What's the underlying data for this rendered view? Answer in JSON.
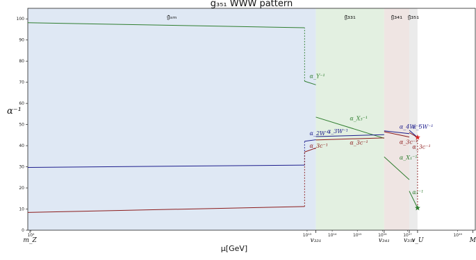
{
  "chart_data": {
    "type": "line",
    "title": "g₃₅₁ WWW pattern",
    "ylabel": "α⁻¹",
    "xlabel": "μ[GeV]",
    "ylim": [
      0,
      105
    ],
    "xlim_log10": [
      1.875,
      19.7
    ],
    "x_scale": "log",
    "y_ticks": [
      "0",
      "10",
      "20",
      "30",
      "40",
      "50",
      "60",
      "70",
      "80",
      "90",
      "100"
    ],
    "x_minor_ticks": [
      {
        "label": "10²",
        "log10": 2
      },
      {
        "label": "10¹³",
        "log10": 13.0
      },
      {
        "label": "10¹⁴",
        "log10": 14
      },
      {
        "label": "10¹⁵",
        "log10": 15
      },
      {
        "label": "10¹⁶",
        "log10": 16
      },
      {
        "label": "10¹⁷",
        "log10": 17
      },
      {
        "label": "10¹⁹",
        "log10": 19
      }
    ],
    "x_special_ticks": [
      {
        "label": "m_Z",
        "log10": 1.96
      },
      {
        "label": "v₃₃₁",
        "log10": 13.35
      },
      {
        "label": "v₃₄₁",
        "log10": 16.07
      },
      {
        "label": "v₃₅₁",
        "log10": 17.07
      },
      {
        "label": "v_U",
        "log10": 17.4
      },
      {
        "label": "M",
        "log10": 19.6
      }
    ],
    "regions": [
      {
        "label": "𝔤ₛₘ",
        "x_range_log10": [
          1.875,
          13.35
        ],
        "color": "#dfe8f4"
      },
      {
        "label": "𝔤₃₃₁",
        "x_range_log10": [
          13.35,
          16.07
        ],
        "color": "#e3f0e1"
      },
      {
        "label": "𝔤₃₄₁",
        "x_range_log10": [
          16.07,
          17.07
        ],
        "color": "#efe5e3"
      },
      {
        "label": "𝔤₃₅₁",
        "x_range_log10": [
          17.07,
          17.4
        ],
        "color": "#ebebeb"
      }
    ],
    "series": [
      {
        "color": "#2e7d2e",
        "points": [
          [
            1.875,
            98.2
          ],
          [
            12.9,
            95.8
          ]
        ]
      },
      {
        "color": "#2e7d2e",
        "points": [
          [
            12.9,
            70.5
          ],
          [
            13.35,
            68.8
          ]
        ]
      },
      {
        "color": "#1c1c8c",
        "points": [
          [
            1.875,
            29.7
          ],
          [
            12.9,
            30.8
          ]
        ]
      },
      {
        "color": "#1c1c8c",
        "points": [
          [
            12.9,
            42.1
          ],
          [
            13.35,
            42.8
          ]
        ]
      },
      {
        "color": "#8b1a1a",
        "points": [
          [
            1.875,
            8.4
          ],
          [
            12.9,
            11.2
          ]
        ]
      },
      {
        "color": "#8b1a1a",
        "points": [
          [
            12.9,
            37.0
          ],
          [
            13.35,
            38.9
          ]
        ]
      },
      {
        "color": "#2e7d2e",
        "points": [
          [
            13.35,
            53.5
          ],
          [
            16.07,
            43.5
          ]
        ]
      },
      {
        "color": "#1c1c8c",
        "points": [
          [
            13.35,
            44.3
          ],
          [
            16.07,
            45.2
          ]
        ]
      },
      {
        "color": "#8b1a1a",
        "points": [
          [
            13.35,
            42.7
          ],
          [
            16.07,
            43.7
          ]
        ]
      },
      {
        "color": "#2e7d2e",
        "points": [
          [
            16.07,
            34.7
          ],
          [
            17.07,
            23.9
          ]
        ]
      },
      {
        "color": "#1c1c8c",
        "points": [
          [
            16.07,
            47.0
          ],
          [
            17.07,
            45.7
          ]
        ]
      },
      {
        "color": "#8b1a1a",
        "points": [
          [
            16.07,
            46.6
          ],
          [
            17.07,
            44.1
          ]
        ]
      },
      {
        "color": "#2e7d2e",
        "points": [
          [
            17.07,
            18.5
          ],
          [
            17.4,
            10.5
          ]
        ]
      },
      {
        "color": "#1c1c8c",
        "points": [
          [
            17.07,
            47.3
          ],
          [
            17.4,
            43.9
          ]
        ]
      },
      {
        "color": "#8b1a1a",
        "points": [
          [
            17.07,
            46.2
          ],
          [
            17.4,
            43.9
          ]
        ]
      }
    ],
    "threshold_jumps": [
      {
        "color": "#2e7d2e",
        "x_log10": 12.9,
        "y": [
          70.5,
          95.8
        ]
      },
      {
        "color": "#1c1c8c",
        "x_log10": 12.9,
        "y": [
          30.8,
          42.1
        ]
      },
      {
        "color": "#8b1a1a",
        "x_log10": 12.9,
        "y": [
          11.2,
          37.0
        ]
      },
      {
        "color": "#8b1a1a",
        "x_log10": 17.4,
        "y": [
          10.5,
          43.9
        ]
      }
    ],
    "markers": [
      {
        "color": "#d62728",
        "x_log10": 17.4,
        "y": 43.9
      },
      {
        "color": "#2e7d2e",
        "x_log10": 17.4,
        "y": 10.5
      }
    ],
    "annotations": [
      {
        "text": "α_Y⁻¹",
        "color": "#2e7d2e",
        "x_log10": 13.1,
        "y": 72
      },
      {
        "text": "α_2W⁻¹",
        "color": "#1c1c8c",
        "x_log10": 13.1,
        "y": 45
      },
      {
        "text": "α_3c⁻¹",
        "color": "#8b1a1a",
        "x_log10": 13.1,
        "y": 39
      },
      {
        "text": "α_X₃⁻¹",
        "color": "#2e7d2e",
        "x_log10": 14.7,
        "y": 52
      },
      {
        "text": "α_3W⁻¹",
        "color": "#1c1c8c",
        "x_log10": 13.8,
        "y": 46
      },
      {
        "text": "α_3c⁻¹",
        "color": "#8b1a1a",
        "x_log10": 14.7,
        "y": 40.5
      },
      {
        "text": "α_4W⁻¹",
        "color": "#1c1c8c",
        "x_log10": 16.68,
        "y": 48
      },
      {
        "text": "α_3c⁻¹",
        "color": "#8b1a1a",
        "x_log10": 16.68,
        "y": 40.8
      },
      {
        "text": "α_X₁⁻¹",
        "color": "#2e7d2e",
        "x_log10": 16.68,
        "y": 33.5
      },
      {
        "text": "α_5W⁻¹",
        "color": "#1c1c8c",
        "x_log10": 17.19,
        "y": 48
      },
      {
        "text": "α_3c⁻¹",
        "color": "#8b1a1a",
        "x_log10": 17.19,
        "y": 38.5
      },
      {
        "text": "α₁⁻¹",
        "color": "#2e7d2e",
        "x_log10": 17.19,
        "y": 17
      }
    ],
    "grid": false,
    "legend": "none"
  }
}
